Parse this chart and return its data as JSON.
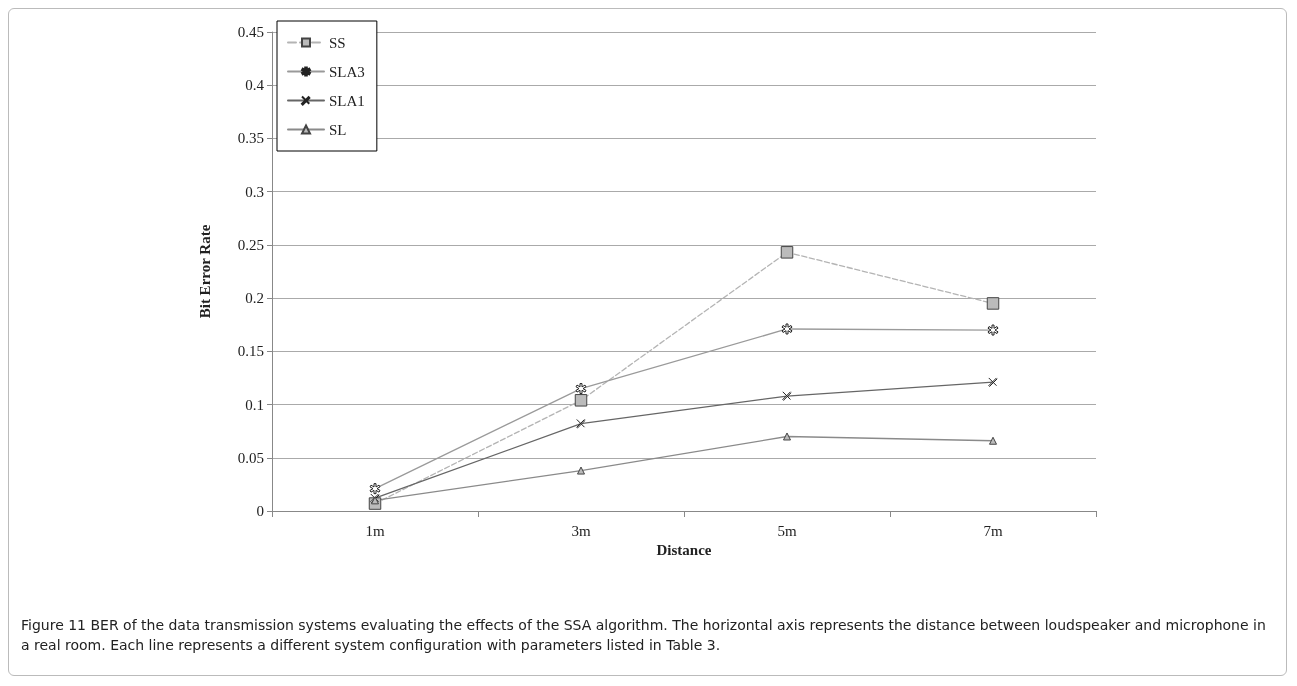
{
  "chart_data": {
    "type": "line",
    "xlabel": "Distance",
    "ylabel": "Bit Error Rate",
    "categories": [
      "1m",
      "3m",
      "5m",
      "7m"
    ],
    "series": [
      {
        "name": "SS",
        "color": "#b4b4b4",
        "line_style": "dashed",
        "marker": "square",
        "values": [
          0.007,
          0.104,
          0.243,
          0.195
        ]
      },
      {
        "name": "SLA3",
        "color": "#9a9a9a",
        "line_style": "solid",
        "marker": "star",
        "values": [
          0.021,
          0.115,
          0.171,
          0.17
        ]
      },
      {
        "name": "SLA1",
        "color": "#666666",
        "line_style": "solid",
        "marker": "cross",
        "values": [
          0.012,
          0.082,
          0.108,
          0.121
        ]
      },
      {
        "name": "SL",
        "color": "#8a8a8a",
        "line_style": "solid",
        "marker": "triangle",
        "values": [
          0.01,
          0.038,
          0.07,
          0.066
        ]
      }
    ],
    "ylim": [
      0,
      0.45
    ],
    "yticks": [
      0,
      0.05,
      0.1,
      0.15,
      0.2,
      0.25,
      0.3,
      0.35,
      0.4,
      0.45
    ],
    "grid": "y",
    "legend": "top left",
    "annotations": [
      "Figure 11  BER of the data transmission systems evaluating the effects of the SSA algorithm. The horizontal axis represents the distance between loudspeaker and microphone in a real room. Each line represents a different system configuration with parameters listed in Table 3."
    ]
  }
}
